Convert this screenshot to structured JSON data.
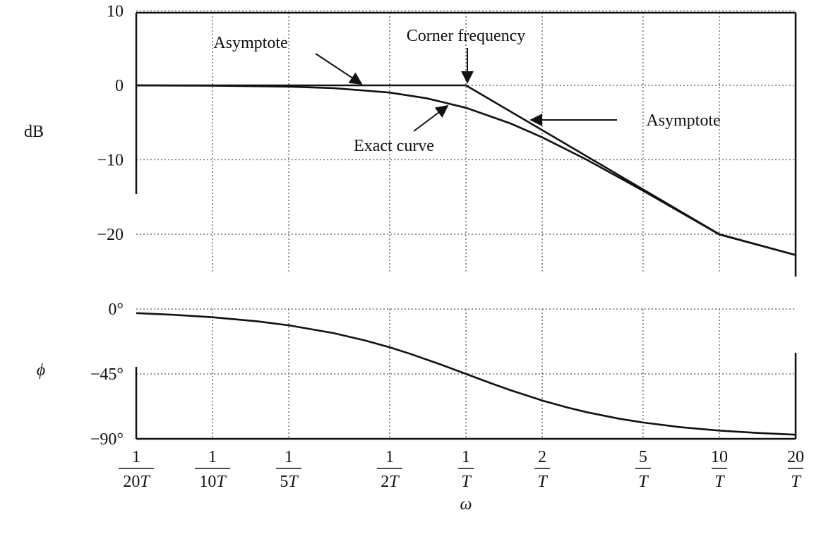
{
  "chart_data": [
    {
      "type": "line",
      "name": "magnitude",
      "x_scale": "log",
      "ylabel": "dB",
      "ylim": [
        -25,
        10
      ],
      "y_ticks": [
        10,
        0,
        -10,
        -20
      ],
      "y_tick_labels": [
        "10",
        "0",
        "−10",
        "−20"
      ],
      "grid": true,
      "series": [
        {
          "name": "Asymptote",
          "x": [
            0.05,
            0.1,
            0.2,
            0.5,
            1,
            2,
            5,
            10,
            20
          ],
          "values": [
            0,
            0,
            0,
            0,
            0,
            -6.02,
            -13.98,
            -20,
            -26.02
          ]
        },
        {
          "name": "Exact curve",
          "x": [
            0.05,
            0.1,
            0.2,
            0.3,
            0.5,
            0.7,
            1,
            1.5,
            2,
            3,
            5,
            10,
            20
          ],
          "values": [
            -0.01,
            -0.04,
            -0.17,
            -0.37,
            -0.97,
            -1.73,
            -3.01,
            -5.12,
            -6.99,
            -10.0,
            -14.15,
            -20.04,
            -26.03
          ]
        }
      ],
      "annotations": [
        {
          "text": "Asymptote",
          "x": 0.4,
          "y": 0
        },
        {
          "text": "Corner frequency",
          "x": 1,
          "y": 0
        },
        {
          "text": "Asymptote",
          "x": 1.8,
          "y": -4.6
        },
        {
          "text": "Exact curve",
          "x": 0.75,
          "y": -2.3
        }
      ]
    },
    {
      "type": "line",
      "name": "phase",
      "x_scale": "log",
      "ylabel": "ϕ",
      "xlabel": "ω",
      "ylim": [
        -90,
        0
      ],
      "y_ticks": [
        0,
        -45,
        -90
      ],
      "y_tick_labels": [
        "0°",
        "−45°",
        "−90°"
      ],
      "grid": true,
      "series": [
        {
          "name": "phase",
          "x": [
            0.05,
            0.07,
            0.1,
            0.15,
            0.2,
            0.3,
            0.4,
            0.5,
            0.6,
            0.8,
            1,
            1.25,
            1.5,
            2,
            2.5,
            3,
            4,
            5,
            7,
            10,
            14,
            20
          ],
          "values": [
            -2.86,
            -4.0,
            -5.71,
            -8.53,
            -11.31,
            -16.7,
            -21.8,
            -26.57,
            -30.96,
            -38.66,
            -45,
            -51.34,
            -56.31,
            -63.43,
            -68.2,
            -71.57,
            -75.96,
            -78.69,
            -81.87,
            -84.29,
            -85.91,
            -87.14
          ]
        }
      ]
    }
  ],
  "x_ticks": [
    {
      "x": 0.05,
      "num": "1",
      "den": "20T"
    },
    {
      "x": 0.1,
      "num": "1",
      "den": "10T"
    },
    {
      "x": 0.2,
      "num": "1",
      "den": "5T"
    },
    {
      "x": 0.5,
      "num": "1",
      "den": "2T"
    },
    {
      "x": 1,
      "num": "1",
      "den": "T"
    },
    {
      "x": 2,
      "num": "2",
      "den": "T"
    },
    {
      "x": 5,
      "num": "5",
      "den": "T"
    },
    {
      "x": 10,
      "num": "10",
      "den": "T"
    },
    {
      "x": 20,
      "num": "20",
      "den": "T"
    }
  ]
}
